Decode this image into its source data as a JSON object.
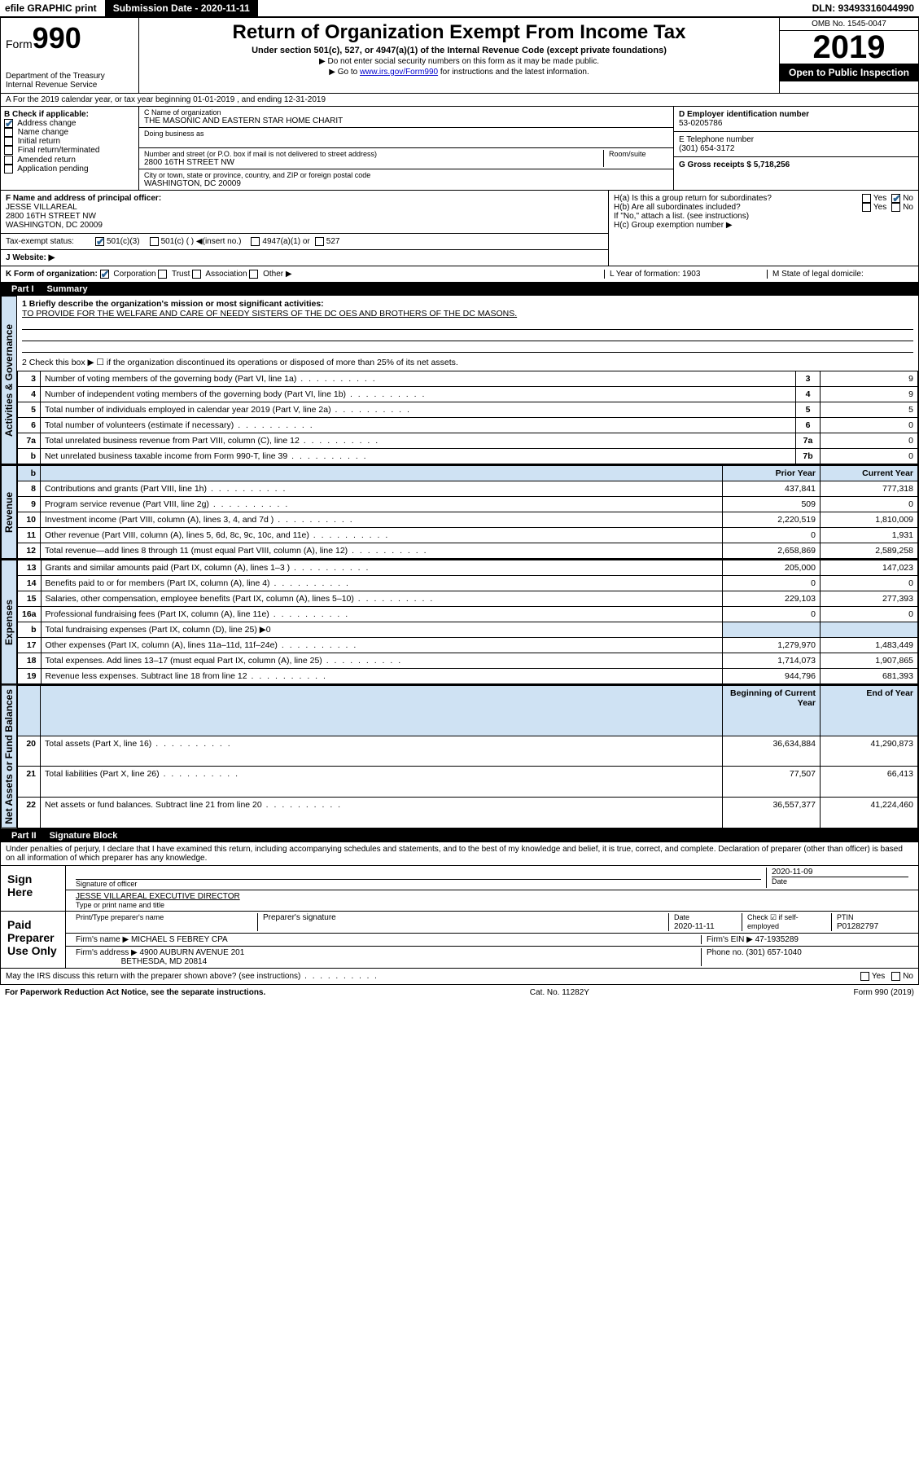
{
  "topbar": {
    "efile": "efile GRAPHIC print",
    "submission": "Submission Date - 2020-11-11",
    "dln": "DLN: 93493316044990"
  },
  "header": {
    "form_prefix": "Form",
    "form_number": "990",
    "dept": "Department of the Treasury\nInternal Revenue Service",
    "title": "Return of Organization Exempt From Income Tax",
    "subtitle": "Under section 501(c), 527, or 4947(a)(1) of the Internal Revenue Code (except private foundations)",
    "note1": "▶ Do not enter social security numbers on this form as it may be made public.",
    "note2_pre": "▶ Go to ",
    "note2_link": "www.irs.gov/Form990",
    "note2_post": " for instructions and the latest information.",
    "omb": "OMB No. 1545-0047",
    "year": "2019",
    "open": "Open to Public Inspection"
  },
  "sectionA": "A For the 2019 calendar year, or tax year beginning 01-01-2019   , and ending 12-31-2019",
  "boxB": {
    "label": "B Check if applicable:",
    "items": [
      "Address change",
      "Name change",
      "Initial return",
      "Final return/terminated",
      "Amended return",
      "Application pending"
    ],
    "checked_idx": 0
  },
  "boxC": {
    "name_label": "C Name of organization",
    "name": "THE MASONIC AND EASTERN STAR HOME CHARIT",
    "dba_label": "Doing business as",
    "addr_label": "Number and street (or P.O. box if mail is not delivered to street address)",
    "room_label": "Room/suite",
    "addr": "2800 16TH STREET NW",
    "city_label": "City or town, state or province, country, and ZIP or foreign postal code",
    "city": "WASHINGTON, DC  20009"
  },
  "boxD": {
    "ein_label": "D Employer identification number",
    "ein": "53-0205786",
    "phone_label": "E Telephone number",
    "phone": "(301) 654-3172",
    "gross_label": "G Gross receipts $ 5,718,256"
  },
  "rowFJ": {
    "F_label": "F  Name and address of principal officer:",
    "F_name": "JESSE VILLAREAL",
    "F_addr1": "2800 16TH STREET NW",
    "F_addr2": "WASHINGTON, DC  20009",
    "tax_label": "Tax-exempt status:",
    "tax_501c3": "501(c)(3)",
    "tax_501c": "501(c) (  ) ◀(insert no.)",
    "tax_4947": "4947(a)(1) or",
    "tax_527": "527",
    "J_label": "J   Website: ▶",
    "Ha": "H(a)  Is this a group return for subordinates?",
    "Hb": "H(b)  Are all subordinates included?",
    "Hb_note": "If \"No,\" attach a list. (see instructions)",
    "Hc": "H(c)  Group exemption number ▶",
    "yes": "Yes",
    "no": "No"
  },
  "rowKLM": {
    "K": "K Form of organization:",
    "K_opts": [
      "Corporation",
      "Trust",
      "Association",
      "Other ▶"
    ],
    "L": "L Year of formation: 1903",
    "M": "M State of legal domicile:"
  },
  "part1": {
    "num": "Part I",
    "title": "Summary"
  },
  "summary": {
    "line1_label": "1  Briefly describe the organization's mission or most significant activities:",
    "line1_text": "TO PROVIDE FOR THE WELFARE AND CARE OF NEEDY SISTERS OF THE DC OES AND BROTHERS OF THE DC MASONS.",
    "line2": "2   Check this box ▶ ☐  if the organization discontinued its operations or disposed of more than 25% of its net assets.",
    "vlabels": [
      "Activities & Governance",
      "Revenue",
      "Expenses",
      "Net Assets or Fund Balances"
    ],
    "col_hdr_prior": "Prior Year",
    "col_hdr_current": "Current Year",
    "col_hdr_begin": "Beginning of Current Year",
    "col_hdr_end": "End of Year",
    "gov_rows": [
      {
        "n": "3",
        "label": "Number of voting members of the governing body (Part VI, line 1a)",
        "idx": "3",
        "val": "9"
      },
      {
        "n": "4",
        "label": "Number of independent voting members of the governing body (Part VI, line 1b)",
        "idx": "4",
        "val": "9"
      },
      {
        "n": "5",
        "label": "Total number of individuals employed in calendar year 2019 (Part V, line 2a)",
        "idx": "5",
        "val": "5"
      },
      {
        "n": "6",
        "label": "Total number of volunteers (estimate if necessary)",
        "idx": "6",
        "val": "0"
      },
      {
        "n": "7a",
        "label": "Total unrelated business revenue from Part VIII, column (C), line 12",
        "idx": "7a",
        "val": "0"
      },
      {
        "n": "b",
        "label": "Net unrelated business taxable income from Form 990-T, line 39",
        "idx": "7b",
        "val": "0"
      }
    ],
    "rev_rows": [
      {
        "n": "8",
        "label": "Contributions and grants (Part VIII, line 1h)",
        "p": "437,841",
        "c": "777,318"
      },
      {
        "n": "9",
        "label": "Program service revenue (Part VIII, line 2g)",
        "p": "509",
        "c": "0"
      },
      {
        "n": "10",
        "label": "Investment income (Part VIII, column (A), lines 3, 4, and 7d )",
        "p": "2,220,519",
        "c": "1,810,009"
      },
      {
        "n": "11",
        "label": "Other revenue (Part VIII, column (A), lines 5, 6d, 8c, 9c, 10c, and 11e)",
        "p": "0",
        "c": "1,931"
      },
      {
        "n": "12",
        "label": "Total revenue—add lines 8 through 11 (must equal Part VIII, column (A), line 12)",
        "p": "2,658,869",
        "c": "2,589,258"
      }
    ],
    "exp_rows": [
      {
        "n": "13",
        "label": "Grants and similar amounts paid (Part IX, column (A), lines 1–3 )",
        "p": "205,000",
        "c": "147,023"
      },
      {
        "n": "14",
        "label": "Benefits paid to or for members (Part IX, column (A), line 4)",
        "p": "0",
        "c": "0"
      },
      {
        "n": "15",
        "label": "Salaries, other compensation, employee benefits (Part IX, column (A), lines 5–10)",
        "p": "229,103",
        "c": "277,393"
      },
      {
        "n": "16a",
        "label": "Professional fundraising fees (Part IX, column (A), line 11e)",
        "p": "0",
        "c": "0"
      },
      {
        "n": "b",
        "label": "Total fundraising expenses (Part IX, column (D), line 25) ▶0",
        "p": "",
        "c": ""
      },
      {
        "n": "17",
        "label": "Other expenses (Part IX, column (A), lines 11a–11d, 11f–24e)",
        "p": "1,279,970",
        "c": "1,483,449"
      },
      {
        "n": "18",
        "label": "Total expenses. Add lines 13–17 (must equal Part IX, column (A), line 25)",
        "p": "1,714,073",
        "c": "1,907,865"
      },
      {
        "n": "19",
        "label": "Revenue less expenses. Subtract line 18 from line 12",
        "p": "944,796",
        "c": "681,393"
      }
    ],
    "net_rows": [
      {
        "n": "20",
        "label": "Total assets (Part X, line 16)",
        "p": "36,634,884",
        "c": "41,290,873"
      },
      {
        "n": "21",
        "label": "Total liabilities (Part X, line 26)",
        "p": "77,507",
        "c": "66,413"
      },
      {
        "n": "22",
        "label": "Net assets or fund balances. Subtract line 21 from line 20",
        "p": "36,557,377",
        "c": "41,224,460"
      }
    ]
  },
  "part2": {
    "num": "Part II",
    "title": "Signature Block"
  },
  "perjury": "Under penalties of perjury, I declare that I have examined this return, including accompanying schedules and statements, and to the best of my knowledge and belief, it is true, correct, and complete. Declaration of preparer (other than officer) is based on all information of which preparer has any knowledge.",
  "sign": {
    "here": "Sign Here",
    "sig_label": "Signature of officer",
    "date": "2020-11-09",
    "date_label": "Date",
    "name": "JESSE VILLAREAL  EXECUTIVE DIRECTOR",
    "name_label": "Type or print name and title"
  },
  "paid": {
    "label": "Paid Preparer Use Only",
    "h1": "Print/Type preparer's name",
    "h2": "Preparer's signature",
    "h3": "Date",
    "h3v": "2020-11-11",
    "h4": "Check ☑ if self-employed",
    "h5": "PTIN",
    "h5v": "P01282797",
    "firm_label": "Firm's name    ▶",
    "firm": "MICHAEL S FEBREY CPA",
    "ein_label": "Firm's EIN ▶ 47-1935289",
    "addr_label": "Firm's address ▶",
    "addr1": "4900 AUBURN AVENUE 201",
    "addr2": "BETHESDA, MD  20814",
    "phone_label": "Phone no. (301) 657-1040"
  },
  "discuss": "May the IRS discuss this return with the preparer shown above? (see instructions)",
  "footer": {
    "left": "For Paperwork Reduction Act Notice, see the separate instructions.",
    "mid": "Cat. No. 11282Y",
    "right": "Form 990 (2019)"
  }
}
